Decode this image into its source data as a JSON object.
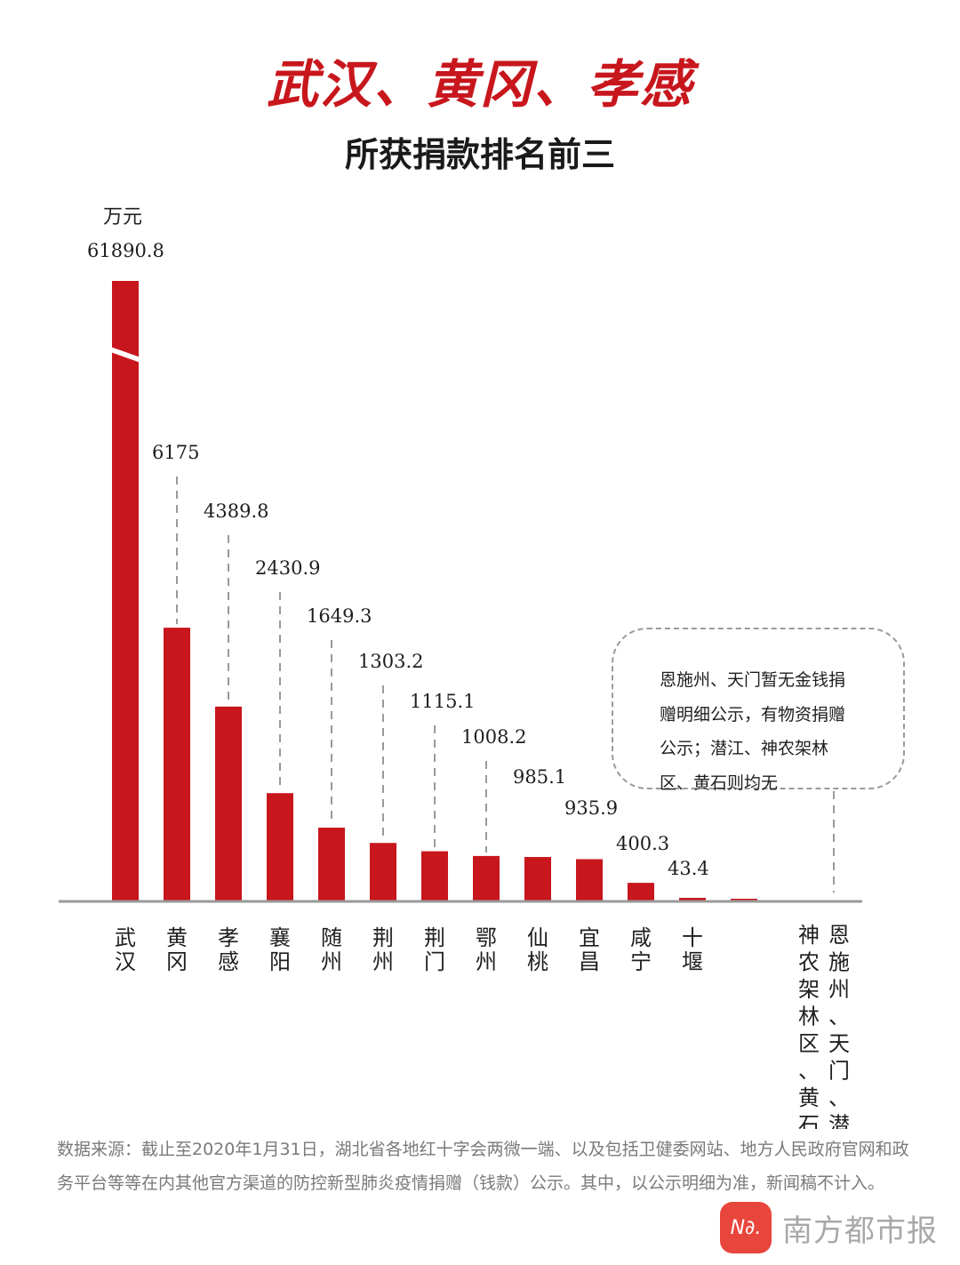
{
  "title": "武汉、黄冈、孝感",
  "subtitle": "所获捐款排名前三",
  "unit": "万元",
  "note": "恩施州、天门暂无金钱捐赠明细公示，有物资捐赠公示；潜江、神农架林区、黄石则均无",
  "footnote": "数据来源：截止至2020年1月31日，湖北省各地红十字会两微一端、以及包括卫健委网站、地方人民政府官网和政务平台等等在内其他官方渠道的防控新型肺炎疫情捐赠（钱款）公示。其中，以公示明细为准，新闻稿不计入。",
  "brand": {
    "logo_text": "N∂.",
    "name": "南方都市报"
  },
  "colors": {
    "bar": "#c8161d",
    "title": "#c8161d",
    "axis": "#9a9a9a"
  },
  "chart_data": {
    "type": "bar",
    "axis_break": true,
    "ylabel": "万元",
    "categories": [
      "武汉",
      "黄冈",
      "孝感",
      "襄阳",
      "随州",
      "荆州",
      "荆门",
      "鄂州",
      "仙桃",
      "宜昌",
      "咸宁",
      "十堰",
      "",
      "恩施州、天门、潜江",
      "神农架林区、黄石"
    ],
    "values": [
      61890.8,
      6175,
      4389.8,
      2430.9,
      1649.3,
      1303.2,
      1115.1,
      1008.2,
      985.1,
      935.9,
      400.3,
      43.4,
      null,
      null,
      null
    ],
    "labels": [
      "61890.8",
      "6175",
      "4389.8",
      "2430.9",
      "1649.3",
      "1303.2",
      "1115.1",
      "1008.2",
      "985.1",
      "935.9",
      "400.3",
      "43.4",
      "",
      "",
      ""
    ]
  }
}
